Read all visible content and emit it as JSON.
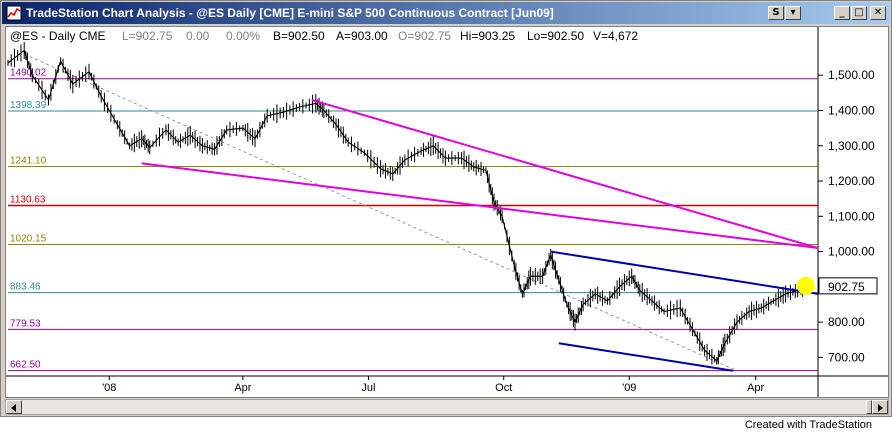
{
  "window": {
    "title": "TradeStation Chart Analysis - @ES  Daily  [CME] E-mini S&P 500 Continuous Contract [Jun09]",
    "buttons": {
      "s": "S",
      "dropdown": "▾",
      "minimize": "_",
      "maximize": "□",
      "close": "✕"
    }
  },
  "header": {
    "symbol": "@ES - Daily  CME",
    "last": "L=902.75",
    "change": "0.00",
    "pct": "0.00%",
    "bid": "B=902.50",
    "ask": "A=903.00",
    "open": "O=902.75",
    "high": "Hi=903.25",
    "low": "Lo=902.50",
    "volume": "V=4,672"
  },
  "colors": {
    "purple": "#9b009b",
    "teal": "#2e8b8b",
    "olive": "#8b8b00",
    "red": "#cc0000",
    "magenta": "#e000e0",
    "blue": "#0000aa",
    "price_bars": "#000000",
    "marker": "#ffff00"
  },
  "chart_data": {
    "type": "line",
    "x_ticks": [
      "'08",
      "Apr",
      "Jul",
      "Oct",
      "'09",
      "Apr"
    ],
    "y_ticks": [
      "1,500.00",
      "1,400.00",
      "1,300.00",
      "1,200.00",
      "1,100.00",
      "1,000.00",
      "800.00",
      "700.00"
    ],
    "ylim": [
      650,
      1580
    ],
    "last_price_label": "902.75",
    "levels": [
      {
        "value": 1490.02,
        "label": "1490.02",
        "color": "purple"
      },
      {
        "value": 1398.39,
        "label": "1398.39",
        "color": "teal"
      },
      {
        "value": 1241.1,
        "label": "1241.10",
        "color": "olive"
      },
      {
        "value": 1130.63,
        "label": "1130.63",
        "color": "red"
      },
      {
        "value": 1020.15,
        "label": "1020.15",
        "color": "olive"
      },
      {
        "value": 883.46,
        "label": "883.46",
        "color": "teal"
      },
      {
        "value": 779.53,
        "label": "779.53",
        "color": "purple"
      },
      {
        "value": 662.5,
        "label": "662.50",
        "color": "purple"
      }
    ],
    "price_path": [
      [
        0,
        1535
      ],
      [
        0.02,
        1570
      ],
      [
        0.03,
        1500
      ],
      [
        0.05,
        1430
      ],
      [
        0.065,
        1540
      ],
      [
        0.08,
        1475
      ],
      [
        0.1,
        1510
      ],
      [
        0.115,
        1440
      ],
      [
        0.135,
        1360
      ],
      [
        0.15,
        1300
      ],
      [
        0.165,
        1320
      ],
      [
        0.175,
        1295
      ],
      [
        0.195,
        1345
      ],
      [
        0.21,
        1310
      ],
      [
        0.225,
        1330
      ],
      [
        0.24,
        1300
      ],
      [
        0.255,
        1290
      ],
      [
        0.27,
        1345
      ],
      [
        0.29,
        1350
      ],
      [
        0.305,
        1320
      ],
      [
        0.32,
        1385
      ],
      [
        0.34,
        1395
      ],
      [
        0.36,
        1410
      ],
      [
        0.38,
        1420
      ],
      [
        0.39,
        1400
      ],
      [
        0.405,
        1360
      ],
      [
        0.42,
        1310
      ],
      [
        0.44,
        1280
      ],
      [
        0.46,
        1235
      ],
      [
        0.475,
        1220
      ],
      [
        0.49,
        1260
      ],
      [
        0.51,
        1285
      ],
      [
        0.525,
        1300
      ],
      [
        0.54,
        1265
      ],
      [
        0.56,
        1265
      ],
      [
        0.575,
        1240
      ],
      [
        0.59,
        1230
      ],
      [
        0.6,
        1140
      ],
      [
        0.61,
        1100
      ],
      [
        0.625,
        960
      ],
      [
        0.635,
        880
      ],
      [
        0.645,
        930
      ],
      [
        0.66,
        930
      ],
      [
        0.67,
        990
      ],
      [
        0.68,
        920
      ],
      [
        0.69,
        850
      ],
      [
        0.7,
        800
      ],
      [
        0.71,
        850
      ],
      [
        0.725,
        880
      ],
      [
        0.74,
        860
      ],
      [
        0.755,
        900
      ],
      [
        0.77,
        930
      ],
      [
        0.78,
        890
      ],
      [
        0.795,
        860
      ],
      [
        0.81,
        830
      ],
      [
        0.83,
        840
      ],
      [
        0.845,
        780
      ],
      [
        0.86,
        720
      ],
      [
        0.875,
        690
      ],
      [
        0.885,
        740
      ],
      [
        0.9,
        800
      ],
      [
        0.915,
        830
      ],
      [
        0.93,
        840
      ],
      [
        0.945,
        860
      ],
      [
        0.96,
        880
      ],
      [
        0.975,
        890
      ],
      [
        0.985,
        902.75
      ]
    ],
    "trendlines": [
      {
        "color": "magenta",
        "from": [
          0.375,
          1430
        ],
        "to": [
          1.0,
          1010
        ]
      },
      {
        "color": "magenta",
        "from": [
          0.165,
          1250
        ],
        "to": [
          1.0,
          1010
        ]
      },
      {
        "color": "blue",
        "from": [
          0.67,
          1000
        ],
        "to": [
          1.0,
          880
        ]
      },
      {
        "color": "blue",
        "from": [
          0.68,
          740
        ],
        "to": [
          0.895,
          662
        ]
      }
    ],
    "dashed_line": {
      "from": [
        0.02,
        1560
      ],
      "to": [
        0.9,
        662
      ]
    }
  },
  "footer": {
    "credit": "Created with TradeStation"
  }
}
